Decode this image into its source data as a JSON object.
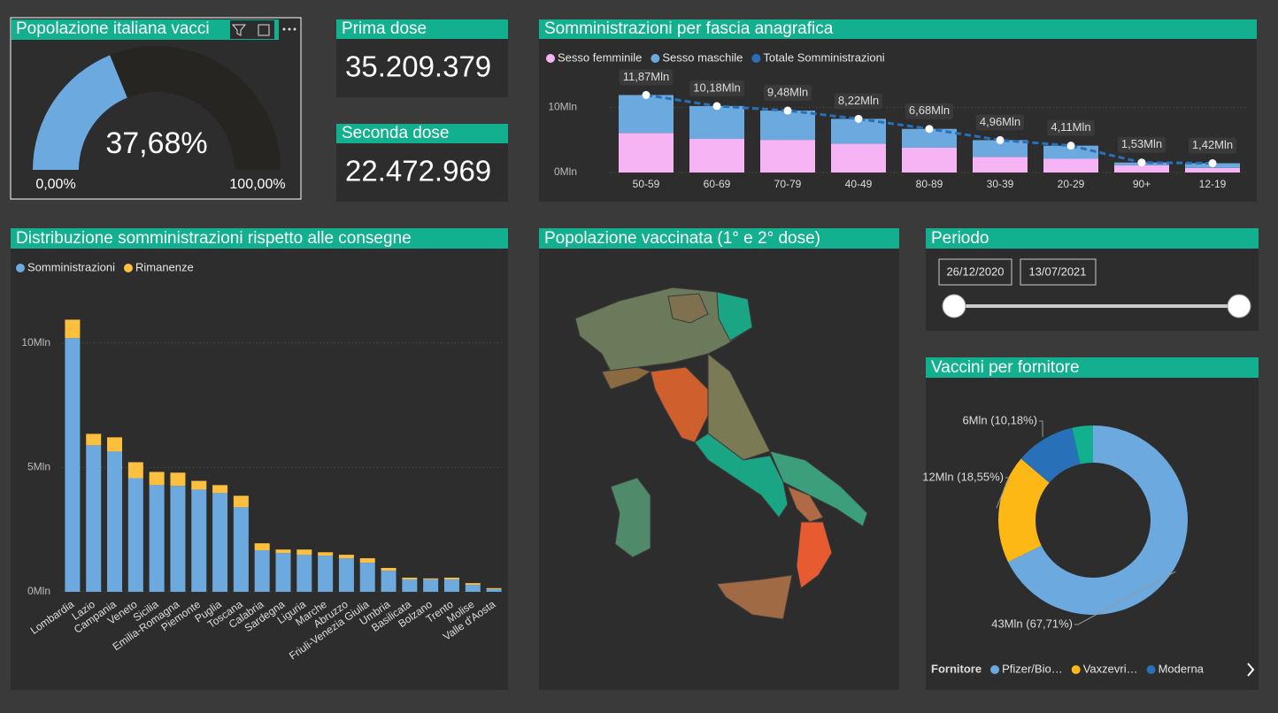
{
  "cards": [
    {
      "title": "Prima dose",
      "value": "35.209.379"
    },
    {
      "title": "Seconda dose",
      "value": "22.472.969"
    }
  ],
  "map": {
    "title": "Popolazione vaccinata (1° e 2° dose)"
  },
  "slicer": {
    "title": "Periodo",
    "start": "26/12/2020",
    "end": "13/07/2021"
  },
  "chart_data": [
    {
      "type": "gauge",
      "title": "Popolazione italiana vacci",
      "value": 37.68,
      "value_label": "37,68%",
      "ylim": [
        0,
        100
      ],
      "yticks": [
        {
          "value": 0,
          "label": "0,00%"
        },
        {
          "value": 100,
          "label": "100,00%"
        }
      ],
      "color": "#6ca9de",
      "track_color": "#262522"
    },
    {
      "type": "bar",
      "stacked": true,
      "title": "Somministrazioni per fascia anagrafica",
      "categories": [
        "50-59",
        "60-69",
        "70-79",
        "40-49",
        "80-89",
        "30-39",
        "20-29",
        "90+",
        "12-19"
      ],
      "series": [
        {
          "name": "Sesso femminile",
          "color": "#f7b4f5",
          "values": [
            6.06,
            5.15,
            5.0,
            4.4,
            3.8,
            2.4,
            2.1,
            1.1,
            0.7
          ]
        },
        {
          "name": "Sesso maschile",
          "color": "#6ca9de",
          "values": [
            5.81,
            5.03,
            4.48,
            3.82,
            2.88,
            2.56,
            2.01,
            0.43,
            0.72
          ]
        },
        {
          "name": "Totale Somministrazioni",
          "type": "line",
          "color": "#2871b8",
          "values": [
            11.87,
            10.18,
            9.48,
            8.22,
            6.68,
            4.96,
            4.11,
            1.53,
            1.42
          ],
          "value_labels": [
            "11,87Mln",
            "10,18Mln",
            "9,48Mln",
            "8,22Mln",
            "6,68Mln",
            "4,96Mln",
            "4,11Mln",
            "1,53Mln",
            "1,42Mln"
          ]
        }
      ],
      "ylim": [
        0,
        14.5
      ],
      "yticks": [
        {
          "value": 0,
          "label": "0Mln"
        },
        {
          "value": 10,
          "label": "10Mln"
        }
      ],
      "grid": true
    },
    {
      "type": "bar",
      "stacked": true,
      "title": "Distribuzione somministrazioni rispetto alle consegne",
      "categories": [
        "Lombardia",
        "Lazio",
        "Campania",
        "Veneto",
        "Sicilia",
        "Emilia-Romagna",
        "Piemonte",
        "Puglia",
        "Toscana",
        "Calabria",
        "Sardegna",
        "Liguria",
        "Marche",
        "Abruzzo",
        "Friuli-Venezia Giulia",
        "Umbria",
        "Basilicata",
        "Bolzano",
        "Trento",
        "Molise",
        "Valle d'Aosta"
      ],
      "series": [
        {
          "name": "Somministrazioni",
          "color": "#6ca9de",
          "values": [
            10.2,
            5.89,
            5.64,
            4.57,
            4.29,
            4.26,
            4.11,
            3.97,
            3.4,
            1.67,
            1.56,
            1.49,
            1.45,
            1.35,
            1.17,
            0.85,
            0.5,
            0.5,
            0.5,
            0.28,
            0.11
          ]
        },
        {
          "name": "Rimanenze",
          "color": "#fdc03e",
          "values": [
            0.74,
            0.46,
            0.57,
            0.64,
            0.53,
            0.53,
            0.35,
            0.32,
            0.46,
            0.28,
            0.14,
            0.21,
            0.14,
            0.14,
            0.18,
            0.11,
            0.07,
            0.04,
            0.07,
            0.07,
            0.04
          ]
        }
      ],
      "ylim": [
        0,
        11.7
      ],
      "yticks": [
        {
          "value": 0,
          "label": "0Mln"
        },
        {
          "value": 5,
          "label": "5Mln"
        },
        {
          "value": 10,
          "label": "10Mln"
        }
      ],
      "grid": true
    },
    {
      "type": "donut",
      "title": "Vaccini per fornitore",
      "legend_title": "Fornitore",
      "categories": [
        "Pfizer/Bio…",
        "Vaxzevri…",
        "Moderna",
        null
      ],
      "values": [
        67.71,
        18.55,
        10.18,
        3.56
      ],
      "value_labels": [
        "43Mln (67,71%)",
        "12Mln (18,55%)",
        "6Mln (10,18%)",
        null
      ],
      "colors": [
        "#6ca9de",
        "#fdb815",
        "#2871b8",
        "#12b08e"
      ]
    }
  ]
}
